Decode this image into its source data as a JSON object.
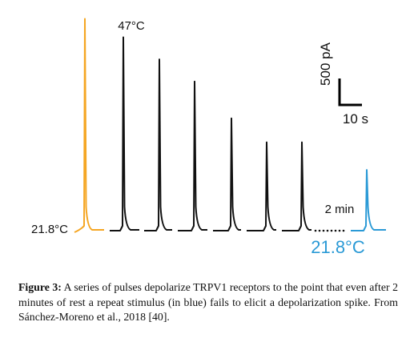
{
  "chart_data": {
    "type": "line",
    "title": "",
    "xlabel": "",
    "ylabel": "",
    "temperature_stimulus_label": "47°C",
    "baseline_label_left": "21.8°C",
    "baseline_label_right": "21.8°C",
    "rest_label": "2 min",
    "scale_bar": {
      "y_label": "500 pA",
      "x_label": "10 s",
      "y_value_pA": 500,
      "x_value_s": 10
    },
    "colors": {
      "first": "#f5a623",
      "repeated": "#111111",
      "recovery": "#2b9ad6"
    },
    "series": [
      {
        "color_key": "first",
        "peak_pA": 1150
      },
      {
        "color_key": "repeated",
        "peak_pA": 1050
      },
      {
        "color_key": "repeated",
        "peak_pA": 930
      },
      {
        "color_key": "repeated",
        "peak_pA": 810
      },
      {
        "color_key": "repeated",
        "peak_pA": 610
      },
      {
        "color_key": "repeated",
        "peak_pA": 480
      },
      {
        "color_key": "repeated",
        "peak_pA": 480
      },
      {
        "color_key": "recovery",
        "peak_pA": 330
      }
    ]
  },
  "caption": {
    "label": "Figure 3:",
    "text": "A series of pulses depolarize TRPV1 receptors to the point that even after 2 minutes of rest a repeat stimulus (in blue) fails to elicit a depolarization spike. From Sánchez-Moreno et al., 2018 [40]."
  }
}
